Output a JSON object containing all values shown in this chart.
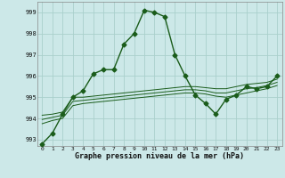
{
  "xlabel": "Graphe pression niveau de la mer (hPa)",
  "background_color": "#cce8e8",
  "grid_color": "#aad0cc",
  "line_color": "#1a5c1a",
  "x_values": [
    0,
    1,
    2,
    3,
    4,
    5,
    6,
    7,
    8,
    9,
    10,
    11,
    12,
    13,
    14,
    15,
    16,
    17,
    18,
    19,
    20,
    21,
    22,
    23
  ],
  "main_line": [
    992.8,
    993.3,
    994.2,
    995.0,
    995.3,
    996.1,
    996.3,
    996.3,
    997.5,
    998.0,
    999.1,
    999.0,
    998.8,
    997.0,
    996.0,
    995.1,
    994.7,
    994.2,
    994.9,
    995.1,
    995.5,
    995.4,
    995.5,
    996.0
  ],
  "line2": [
    994.15,
    994.2,
    994.3,
    995.0,
    995.0,
    995.05,
    995.1,
    995.15,
    995.2,
    995.25,
    995.3,
    995.35,
    995.4,
    995.45,
    995.5,
    995.5,
    995.45,
    995.4,
    995.4,
    995.5,
    995.6,
    995.65,
    995.7,
    995.85
  ],
  "line3": [
    993.95,
    994.05,
    994.15,
    994.8,
    994.85,
    994.9,
    994.95,
    995.0,
    995.05,
    995.1,
    995.15,
    995.2,
    995.25,
    995.3,
    995.35,
    995.35,
    995.3,
    995.2,
    995.2,
    995.3,
    995.4,
    995.45,
    995.55,
    995.7
  ],
  "line4": [
    993.75,
    993.9,
    994.0,
    994.6,
    994.7,
    994.75,
    994.8,
    994.85,
    994.9,
    994.95,
    995.0,
    995.05,
    995.1,
    995.15,
    995.2,
    995.2,
    995.15,
    995.05,
    995.0,
    995.1,
    995.2,
    995.3,
    995.4,
    995.55
  ],
  "ylim": [
    992.7,
    999.5
  ],
  "yticks": [
    993,
    994,
    995,
    996,
    997,
    998,
    999
  ],
  "xticks": [
    0,
    1,
    2,
    3,
    4,
    5,
    6,
    7,
    8,
    9,
    10,
    11,
    12,
    13,
    14,
    15,
    16,
    17,
    18,
    19,
    20,
    21,
    22,
    23
  ],
  "markersize": 2.5,
  "linewidth": 1.0
}
